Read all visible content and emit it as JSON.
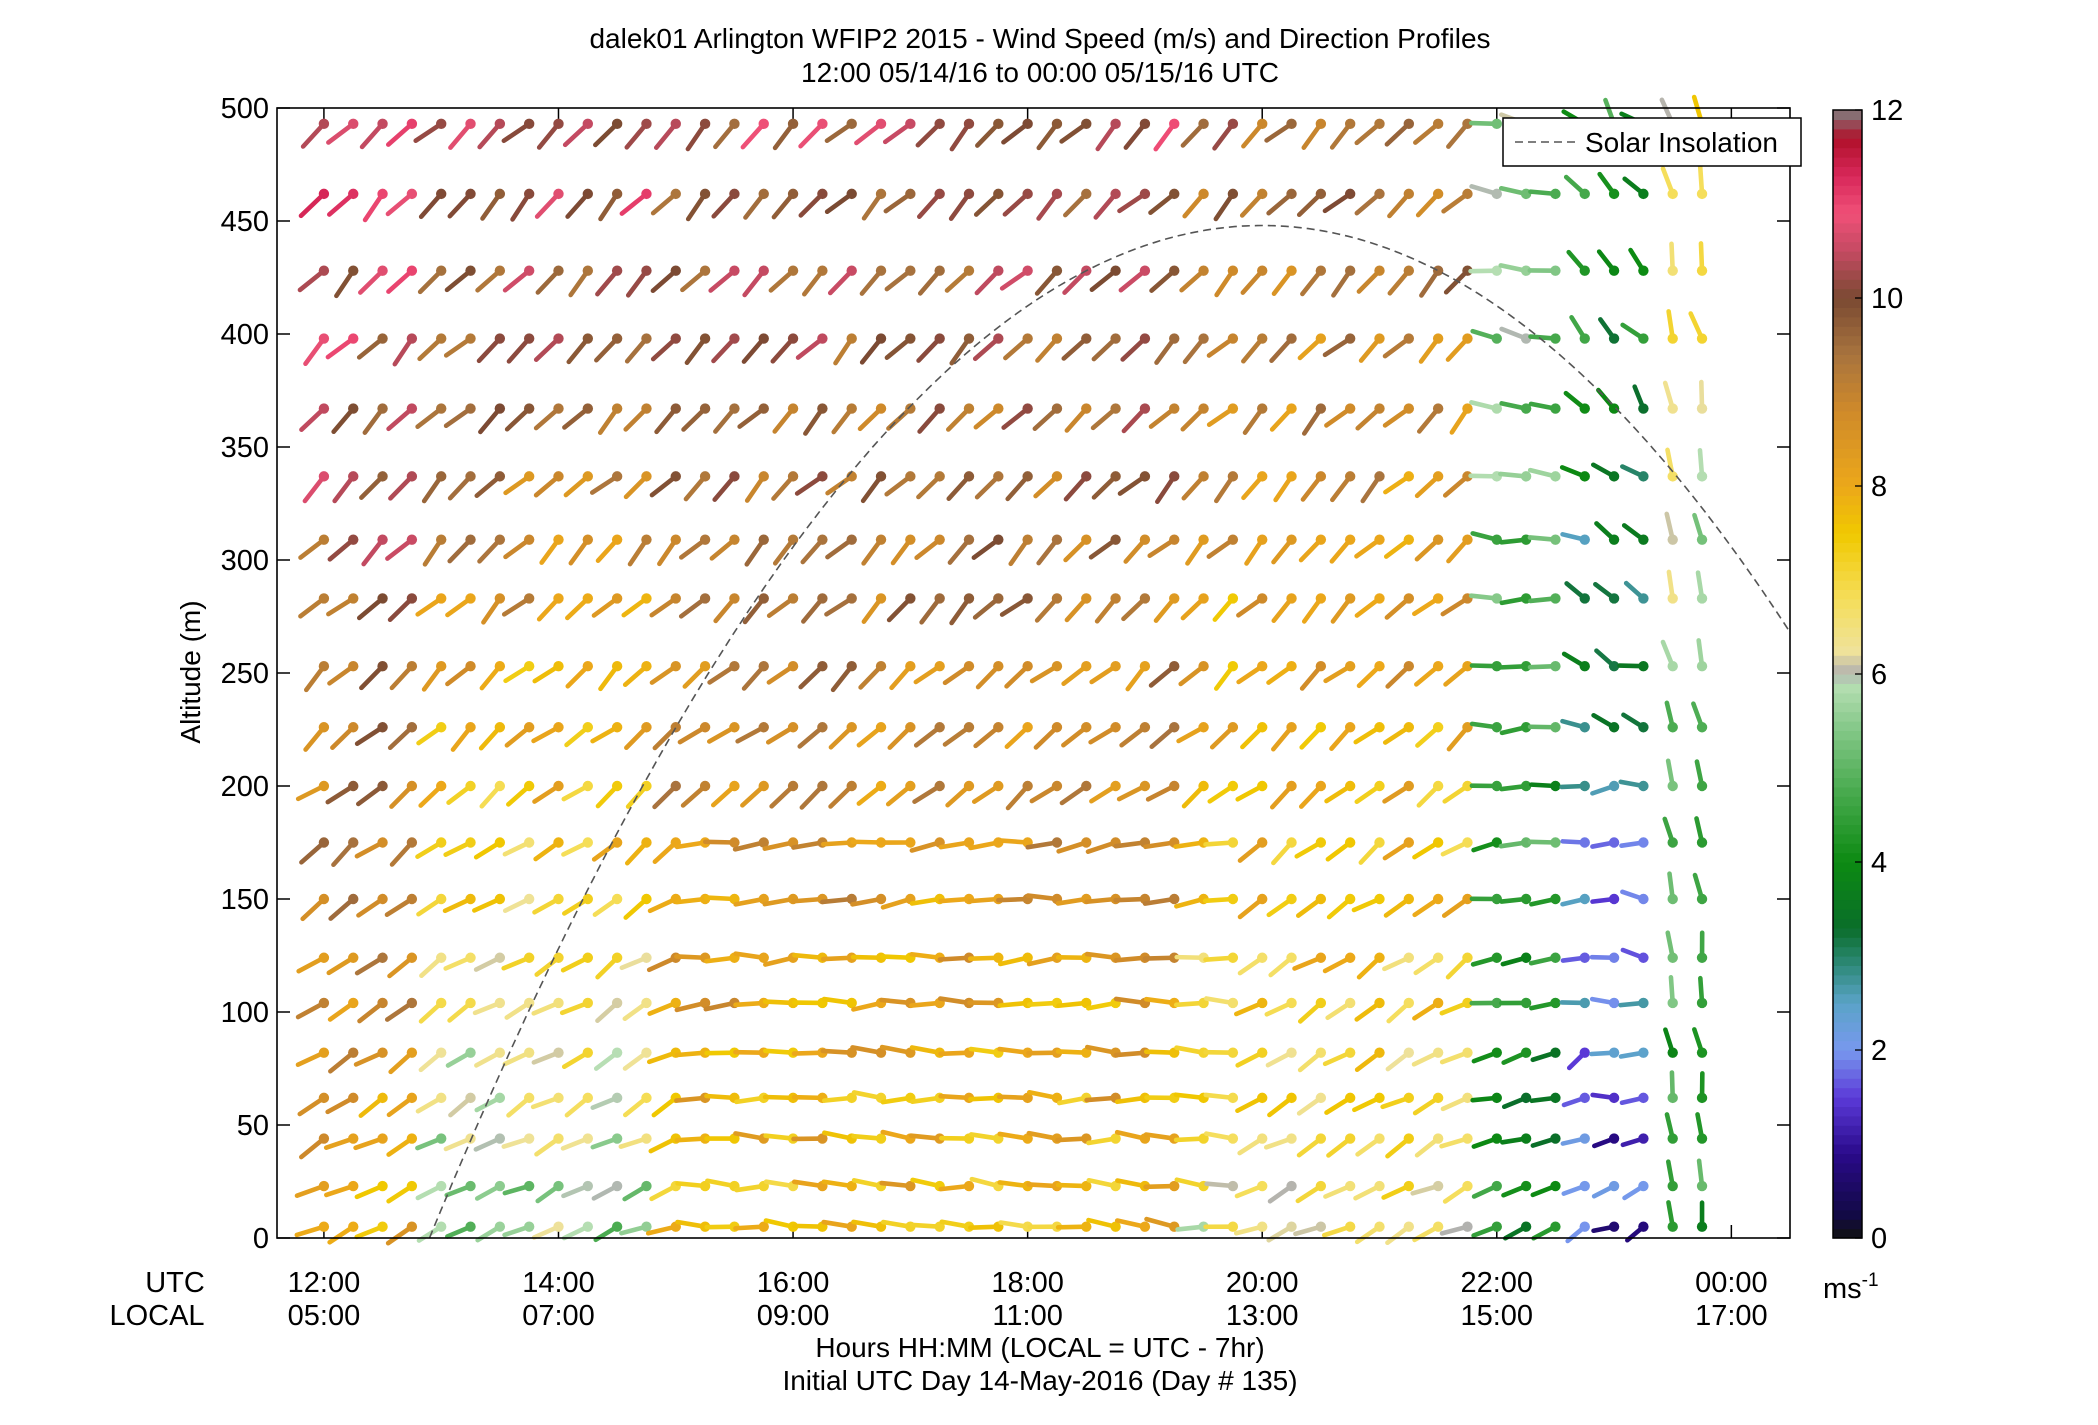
{
  "chart_data": {
    "type": "wind-profile",
    "title": "dalek01 Arlington WFIP2 2015 - Wind Speed (m/s) and Direction Profiles",
    "subtitle": "12:00 05/14/16 to 00:00 05/15/16  UTC",
    "ylabel": "Altitude (m)",
    "xlabel_line1": "Hours HH:MM  (LOCAL = UTC - 7hr)",
    "xlabel_line2": "Initial UTC Day 14-May-2016 (Day # 135)",
    "x_row_labels": [
      "UTC",
      "LOCAL"
    ],
    "xlim_hours": [
      11.6,
      24.5
    ],
    "ylim": [
      0,
      500
    ],
    "yticks": [
      0,
      50,
      100,
      150,
      200,
      250,
      300,
      350,
      400,
      450,
      500
    ],
    "xticks": [
      {
        "hour": 12,
        "utc": "12:00",
        "local": "05:00"
      },
      {
        "hour": 14,
        "utc": "14:00",
        "local": "07:00"
      },
      {
        "hour": 16,
        "utc": "16:00",
        "local": "09:00"
      },
      {
        "hour": 18,
        "utc": "18:00",
        "local": "11:00"
      },
      {
        "hour": 20,
        "utc": "20:00",
        "local": "13:00"
      },
      {
        "hour": 22,
        "utc": "22:00",
        "local": "15:00"
      },
      {
        "hour": 24,
        "utc": "00:00",
        "local": "17:00"
      }
    ],
    "legend": {
      "label": "Solar Insolation",
      "placement": "top-right",
      "style": "dashed"
    },
    "solar_insolation": {
      "rise_hour": 12.9,
      "peak_hour": 20.0,
      "peak_altitude": 448
    },
    "colorbar": {
      "unit": "ms",
      "unit_exponent": "-1",
      "min": 0,
      "max": 12,
      "ticks": [
        0,
        2,
        4,
        6,
        8,
        10,
        12
      ],
      "stops": [
        {
          "v": 0.0,
          "c": "#111111"
        },
        {
          "v": 0.25,
          "c": "#120a45"
        },
        {
          "v": 0.9,
          "c": "#2a0a8a"
        },
        {
          "v": 1.5,
          "c": "#5b3ad8"
        },
        {
          "v": 2.0,
          "c": "#7898ee"
        },
        {
          "v": 2.5,
          "c": "#5aa3c8"
        },
        {
          "v": 2.9,
          "c": "#2f8a7a"
        },
        {
          "v": 3.3,
          "c": "#0a6e2a"
        },
        {
          "v": 4.0,
          "c": "#0c8a12"
        },
        {
          "v": 4.7,
          "c": "#44a84a"
        },
        {
          "v": 5.4,
          "c": "#82c786"
        },
        {
          "v": 5.9,
          "c": "#b7dfb4"
        },
        {
          "v": 6.0,
          "c": "#b0b0b0"
        },
        {
          "v": 6.25,
          "c": "#efe29a"
        },
        {
          "v": 6.8,
          "c": "#f5de5a"
        },
        {
          "v": 7.5,
          "c": "#f0c800"
        },
        {
          "v": 8.0,
          "c": "#eca81a"
        },
        {
          "v": 8.8,
          "c": "#cf8a2a"
        },
        {
          "v": 9.4,
          "c": "#a8733e"
        },
        {
          "v": 10.0,
          "c": "#7a4a32"
        },
        {
          "v": 10.5,
          "c": "#c44a62"
        },
        {
          "v": 10.9,
          "c": "#f05078"
        },
        {
          "v": 11.3,
          "c": "#d8285a"
        },
        {
          "v": 11.7,
          "c": "#b0102a"
        },
        {
          "v": 12.0,
          "c": "#808080"
        }
      ]
    },
    "altitudes": [
      5,
      23,
      44,
      62,
      82,
      104,
      124,
      150,
      175,
      200,
      226,
      253,
      283,
      309,
      337,
      367,
      398,
      428,
      462,
      493
    ],
    "time_hours": [
      12.0,
      12.25,
      12.5,
      12.75,
      13.0,
      13.25,
      13.5,
      13.75,
      14.0,
      14.25,
      14.5,
      14.75,
      15.0,
      15.25,
      15.5,
      15.75,
      16.0,
      16.25,
      16.5,
      16.75,
      17.0,
      17.25,
      17.5,
      17.75,
      18.0,
      18.25,
      18.5,
      18.75,
      19.0,
      19.25,
      19.5,
      19.75,
      20.0,
      20.25,
      20.5,
      20.75,
      21.0,
      21.25,
      21.5,
      21.75,
      22.0,
      22.25,
      22.5,
      22.75,
      23.0,
      23.25,
      23.5,
      23.75
    ],
    "wind_model": "approximate direction and speed reconstructed from barb orientation and colour",
    "speed_by_period": [
      {
        "from": 12.0,
        "to": 13.0,
        "low_speed": 8.0,
        "high_speed": 10.8
      },
      {
        "from": 13.0,
        "to": 15.0,
        "low_speed": 5.5,
        "high_speed": 10.5
      },
      {
        "from": 15.0,
        "to": 19.5,
        "low_speed": 7.6,
        "high_speed": 10.2
      },
      {
        "from": 19.5,
        "to": 22.0,
        "low_speed": 6.5,
        "high_speed": 9.5
      },
      {
        "from": 22.0,
        "to": 22.75,
        "low_speed": 3.8,
        "high_speed": 5.6
      },
      {
        "from": 22.75,
        "to": 23.5,
        "low_speed": 1.2,
        "high_speed": 4.5
      },
      {
        "from": 23.5,
        "to": 24.0,
        "low_speed": 4.2,
        "high_speed": 6.8
      }
    ]
  }
}
